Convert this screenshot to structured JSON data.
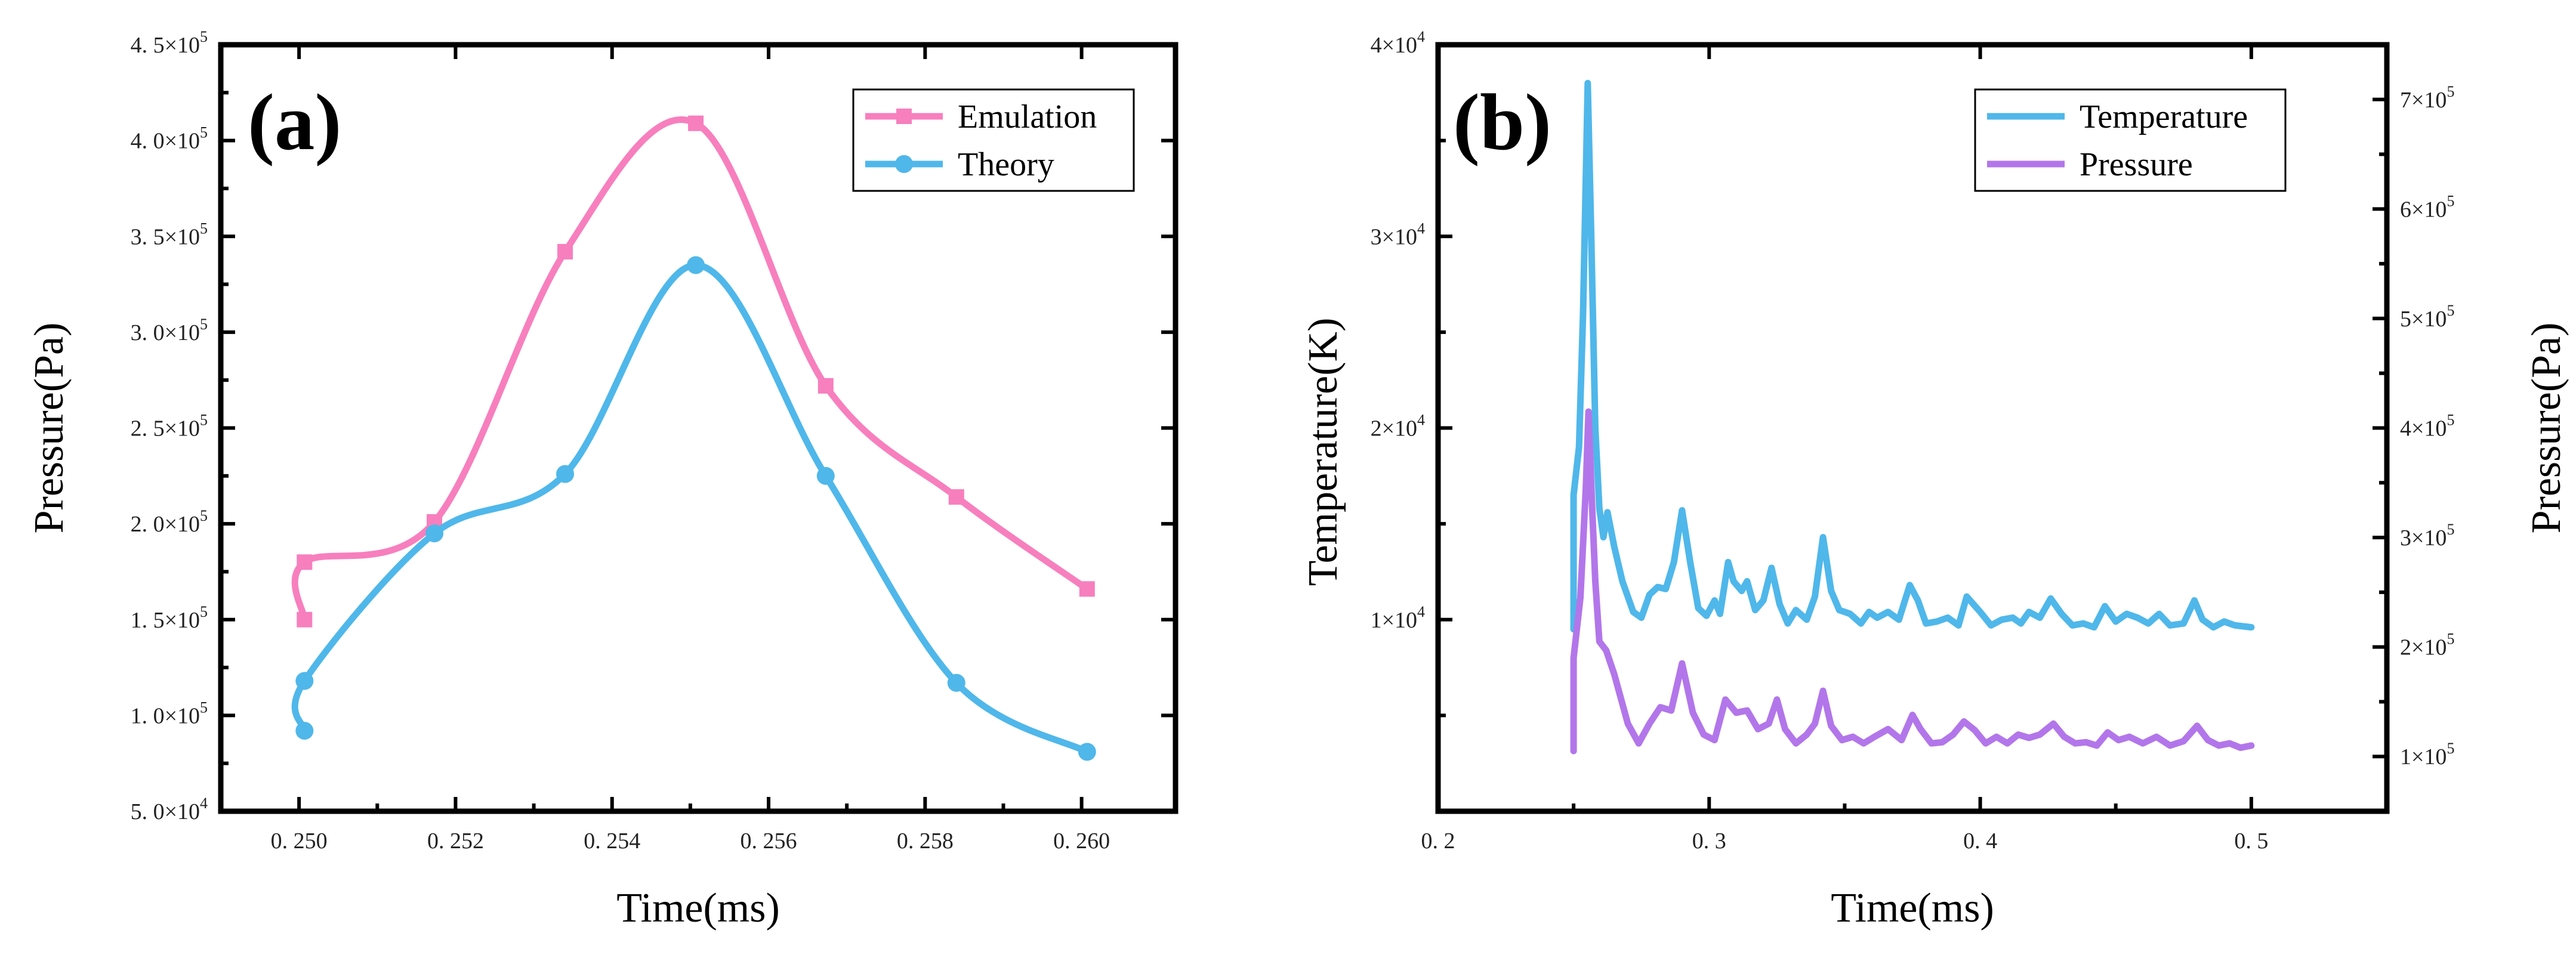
{
  "chart_data": [
    {
      "panel_label": "(a)",
      "type": "line",
      "xlabel": "Time(ms)",
      "ylabel": "Pressure(Pa)",
      "xlim": [
        0.249,
        0.2612
      ],
      "ylim": [
        50000,
        450000
      ],
      "xticks": [
        0.25,
        0.252,
        0.254,
        0.256,
        0.258,
        0.26
      ],
      "xtick_labels": [
        "0. 250",
        "0. 252",
        "0. 254",
        "0. 256",
        "0. 258",
        "0. 260"
      ],
      "yticks": [
        50000,
        100000,
        150000,
        200000,
        250000,
        300000,
        350000,
        400000,
        450000
      ],
      "ytick_labels": [
        {
          "m": "5. 0",
          "e": "4"
        },
        {
          "m": "1. 0",
          "e": "5"
        },
        {
          "m": "1. 5",
          "e": "5"
        },
        {
          "m": "2. 0",
          "e": "5"
        },
        {
          "m": "2. 5",
          "e": "5"
        },
        {
          "m": "3. 0",
          "e": "5"
        },
        {
          "m": "3. 5",
          "e": "5"
        },
        {
          "m": "4. 0",
          "e": "5"
        },
        {
          "m": "4. 5",
          "e": "5"
        }
      ],
      "legend_position": "top-right",
      "series": [
        {
          "name": "Emulation",
          "color": "#f77fbe",
          "marker": "square",
          "points": [
            [
              0.25007,
              150000
            ],
            [
              0.25007,
              180000
            ],
            [
              0.25173,
              201000
            ],
            [
              0.2534,
              342000
            ],
            [
              0.25507,
              409000
            ],
            [
              0.25673,
              272000
            ],
            [
              0.2584,
              214000
            ],
            [
              0.26007,
              166000
            ]
          ]
        },
        {
          "name": "Theory",
          "color": "#4fb7ea",
          "marker": "circle",
          "points": [
            [
              0.25007,
              92000
            ],
            [
              0.25007,
              118000
            ],
            [
              0.25173,
              195000
            ],
            [
              0.2534,
              226000
            ],
            [
              0.25507,
              335000
            ],
            [
              0.25673,
              225000
            ],
            [
              0.2584,
              117000
            ],
            [
              0.26007,
              81000
            ]
          ]
        }
      ]
    },
    {
      "panel_label": "(b)",
      "type": "line",
      "xlabel": "Time(ms)",
      "ylabel_left": "Temperature(K)",
      "ylabel_right": "Pressure(Pa)",
      "xlim": [
        0.2,
        0.55
      ],
      "ylim_left": [
        0,
        40000
      ],
      "ylim_right": [
        50000,
        750000
      ],
      "xticks": [
        0.2,
        0.3,
        0.4,
        0.5
      ],
      "xtick_labels": [
        "0. 2",
        "0. 3",
        "0. 4",
        "0. 5"
      ],
      "yticks_left": [
        10000,
        20000,
        30000,
        40000
      ],
      "ytick_labels_left": [
        {
          "m": "1",
          "e": "4"
        },
        {
          "m": "2",
          "e": "4"
        },
        {
          "m": "3",
          "e": "4"
        },
        {
          "m": "4",
          "e": "4"
        }
      ],
      "yticks_right": [
        100000,
        200000,
        300000,
        400000,
        500000,
        600000,
        700000
      ],
      "ytick_labels_right": [
        {
          "m": "1",
          "e": "5"
        },
        {
          "m": "2",
          "e": "5"
        },
        {
          "m": "3",
          "e": "5"
        },
        {
          "m": "4",
          "e": "5"
        },
        {
          "m": "5",
          "e": "5"
        },
        {
          "m": "6",
          "e": "5"
        },
        {
          "m": "7",
          "e": "5"
        }
      ],
      "legend_position": "top-right",
      "series": [
        {
          "name": "Temperature",
          "axis": "left",
          "color": "#4fb7ea",
          "points": [
            [
              0.25,
              9500
            ],
            [
              0.25,
              16500
            ],
            [
              0.252,
              19000
            ],
            [
              0.2535,
              26000
            ],
            [
              0.2552,
              38000
            ],
            [
              0.2565,
              30000
            ],
            [
              0.258,
              20000
            ],
            [
              0.2595,
              15800
            ],
            [
              0.261,
              14300
            ],
            [
              0.2625,
              15600
            ],
            [
              0.265,
              13800
            ],
            [
              0.268,
              12000
            ],
            [
              0.272,
              10400
            ],
            [
              0.275,
              10100
            ],
            [
              0.278,
              11300
            ],
            [
              0.281,
              11700
            ],
            [
              0.284,
              11600
            ],
            [
              0.287,
              13000
            ],
            [
              0.29,
              15700
            ],
            [
              0.293,
              13000
            ],
            [
              0.296,
              10600
            ],
            [
              0.299,
              10200
            ],
            [
              0.302,
              11000
            ],
            [
              0.304,
              10300
            ],
            [
              0.307,
              13000
            ],
            [
              0.309,
              12000
            ],
            [
              0.312,
              11500
            ],
            [
              0.314,
              12000
            ],
            [
              0.317,
              10500
            ],
            [
              0.32,
              11000
            ],
            [
              0.323,
              12700
            ],
            [
              0.326,
              10800
            ],
            [
              0.329,
              9800
            ],
            [
              0.332,
              10500
            ],
            [
              0.336,
              10000
            ],
            [
              0.339,
              11200
            ],
            [
              0.342,
              14300
            ],
            [
              0.345,
              11500
            ],
            [
              0.348,
              10500
            ],
            [
              0.352,
              10300
            ],
            [
              0.356,
              9800
            ],
            [
              0.359,
              10400
            ],
            [
              0.362,
              10100
            ],
            [
              0.366,
              10400
            ],
            [
              0.37,
              10000
            ],
            [
              0.374,
              11800
            ],
            [
              0.377,
              11000
            ],
            [
              0.38,
              9800
            ],
            [
              0.384,
              9900
            ],
            [
              0.388,
              10100
            ],
            [
              0.392,
              9700
            ],
            [
              0.395,
              11200
            ],
            [
              0.4,
              10400
            ],
            [
              0.404,
              9700
            ],
            [
              0.408,
              10000
            ],
            [
              0.412,
              10100
            ],
            [
              0.415,
              9800
            ],
            [
              0.418,
              10400
            ],
            [
              0.422,
              10100
            ],
            [
              0.426,
              11100
            ],
            [
              0.43,
              10300
            ],
            [
              0.434,
              9700
            ],
            [
              0.438,
              9800
            ],
            [
              0.442,
              9600
            ],
            [
              0.446,
              10700
            ],
            [
              0.45,
              9900
            ],
            [
              0.454,
              10300
            ],
            [
              0.458,
              10100
            ],
            [
              0.462,
              9800
            ],
            [
              0.466,
              10300
            ],
            [
              0.47,
              9700
            ],
            [
              0.475,
              9800
            ],
            [
              0.479,
              11000
            ],
            [
              0.482,
              10000
            ],
            [
              0.486,
              9600
            ],
            [
              0.49,
              9900
            ],
            [
              0.494,
              9700
            ],
            [
              0.5,
              9600
            ]
          ]
        },
        {
          "name": "Pressure",
          "axis": "right",
          "color": "#b276ea",
          "points": [
            [
              0.25,
              105000
            ],
            [
              0.25,
              190000
            ],
            [
              0.2525,
              245000
            ],
            [
              0.2545,
              345000
            ],
            [
              0.2555,
              415000
            ],
            [
              0.2568,
              330000
            ],
            [
              0.258,
              260000
            ],
            [
              0.2595,
              205000
            ],
            [
              0.262,
              197000
            ],
            [
              0.265,
              175000
            ],
            [
              0.27,
              130000
            ],
            [
              0.274,
              112000
            ],
            [
              0.278,
              130000
            ],
            [
              0.282,
              145000
            ],
            [
              0.286,
              142000
            ],
            [
              0.29,
              185000
            ],
            [
              0.294,
              140000
            ],
            [
              0.298,
              120000
            ],
            [
              0.302,
              115000
            ],
            [
              0.306,
              152000
            ],
            [
              0.31,
              140000
            ],
            [
              0.314,
              142000
            ],
            [
              0.318,
              125000
            ],
            [
              0.322,
              130000
            ],
            [
              0.325,
              152000
            ],
            [
              0.328,
              125000
            ],
            [
              0.332,
              112000
            ],
            [
              0.336,
              120000
            ],
            [
              0.339,
              130000
            ],
            [
              0.342,
              160000
            ],
            [
              0.345,
              128000
            ],
            [
              0.349,
              115000
            ],
            [
              0.353,
              118000
            ],
            [
              0.357,
              112000
            ],
            [
              0.361,
              118000
            ],
            [
              0.366,
              125000
            ],
            [
              0.371,
              115000
            ],
            [
              0.375,
              138000
            ],
            [
              0.378,
              125000
            ],
            [
              0.382,
              112000
            ],
            [
              0.386,
              113000
            ],
            [
              0.39,
              120000
            ],
            [
              0.394,
              132000
            ],
            [
              0.398,
              124000
            ],
            [
              0.402,
              112000
            ],
            [
              0.406,
              118000
            ],
            [
              0.41,
              112000
            ],
            [
              0.414,
              120000
            ],
            [
              0.418,
              117000
            ],
            [
              0.422,
              120000
            ],
            [
              0.427,
              130000
            ],
            [
              0.431,
              118000
            ],
            [
              0.435,
              112000
            ],
            [
              0.439,
              113000
            ],
            [
              0.443,
              110000
            ],
            [
              0.447,
              122000
            ],
            [
              0.451,
              115000
            ],
            [
              0.455,
              118000
            ],
            [
              0.46,
              112000
            ],
            [
              0.465,
              118000
            ],
            [
              0.47,
              110000
            ],
            [
              0.475,
              114000
            ],
            [
              0.48,
              128000
            ],
            [
              0.484,
              115000
            ],
            [
              0.488,
              110000
            ],
            [
              0.492,
              112000
            ],
            [
              0.496,
              108000
            ],
            [
              0.5,
              110000
            ]
          ]
        }
      ]
    }
  ]
}
